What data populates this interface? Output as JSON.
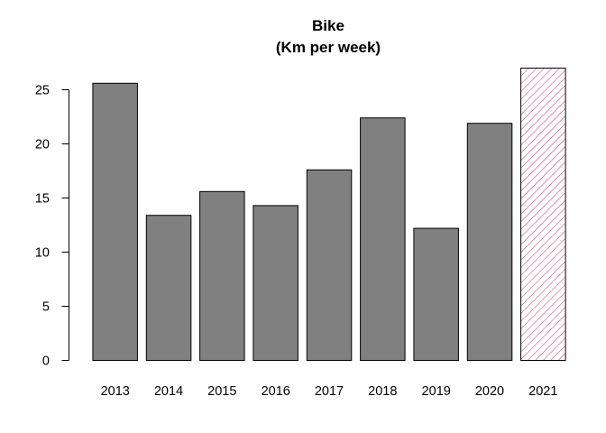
{
  "chart_data": {
    "type": "bar",
    "title": "Bike",
    "subtitle": "(Km per week)",
    "xlabel": "",
    "ylabel": "",
    "categories": [
      "2013",
      "2014",
      "2015",
      "2016",
      "2017",
      "2018",
      "2019",
      "2020",
      "2021"
    ],
    "values": [
      25.6,
      13.4,
      15.6,
      14.3,
      17.6,
      22.4,
      12.2,
      21.9,
      27.0
    ],
    "ylim": [
      0,
      27
    ],
    "yticks": [
      0,
      5,
      10,
      15,
      20,
      25
    ],
    "grid": false,
    "legend": "none",
    "bar_color": "#808080",
    "highlight": {
      "category": "2021",
      "style": "hatched",
      "hatch_color": "#c8326e"
    }
  }
}
